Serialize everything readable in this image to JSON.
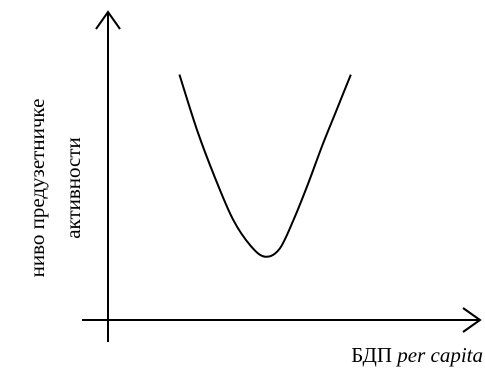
{
  "chart_data": {
    "type": "line",
    "title": "",
    "ylabel_line1": "ниво предузетничке",
    "ylabel_line2": "активности",
    "xlabel_main": "БДП ",
    "xlabel_italic": "per capita",
    "grid": false,
    "legend": "none",
    "xticks": [],
    "yticks": [],
    "xlim": [
      0,
      10
    ],
    "ylim": [
      0,
      10
    ],
    "series": [
      {
        "curve": "U-shape",
        "x": [
          2.0,
          2.5,
          3.0,
          3.5,
          4.0,
          4.4,
          4.8,
          5.2,
          5.6,
          6.0,
          6.4,
          6.8
        ],
        "y": [
          8.3,
          6.4,
          4.8,
          3.4,
          2.5,
          2.14,
          2.4,
          3.4,
          4.6,
          5.9,
          7.1,
          8.3
        ]
      }
    ]
  }
}
